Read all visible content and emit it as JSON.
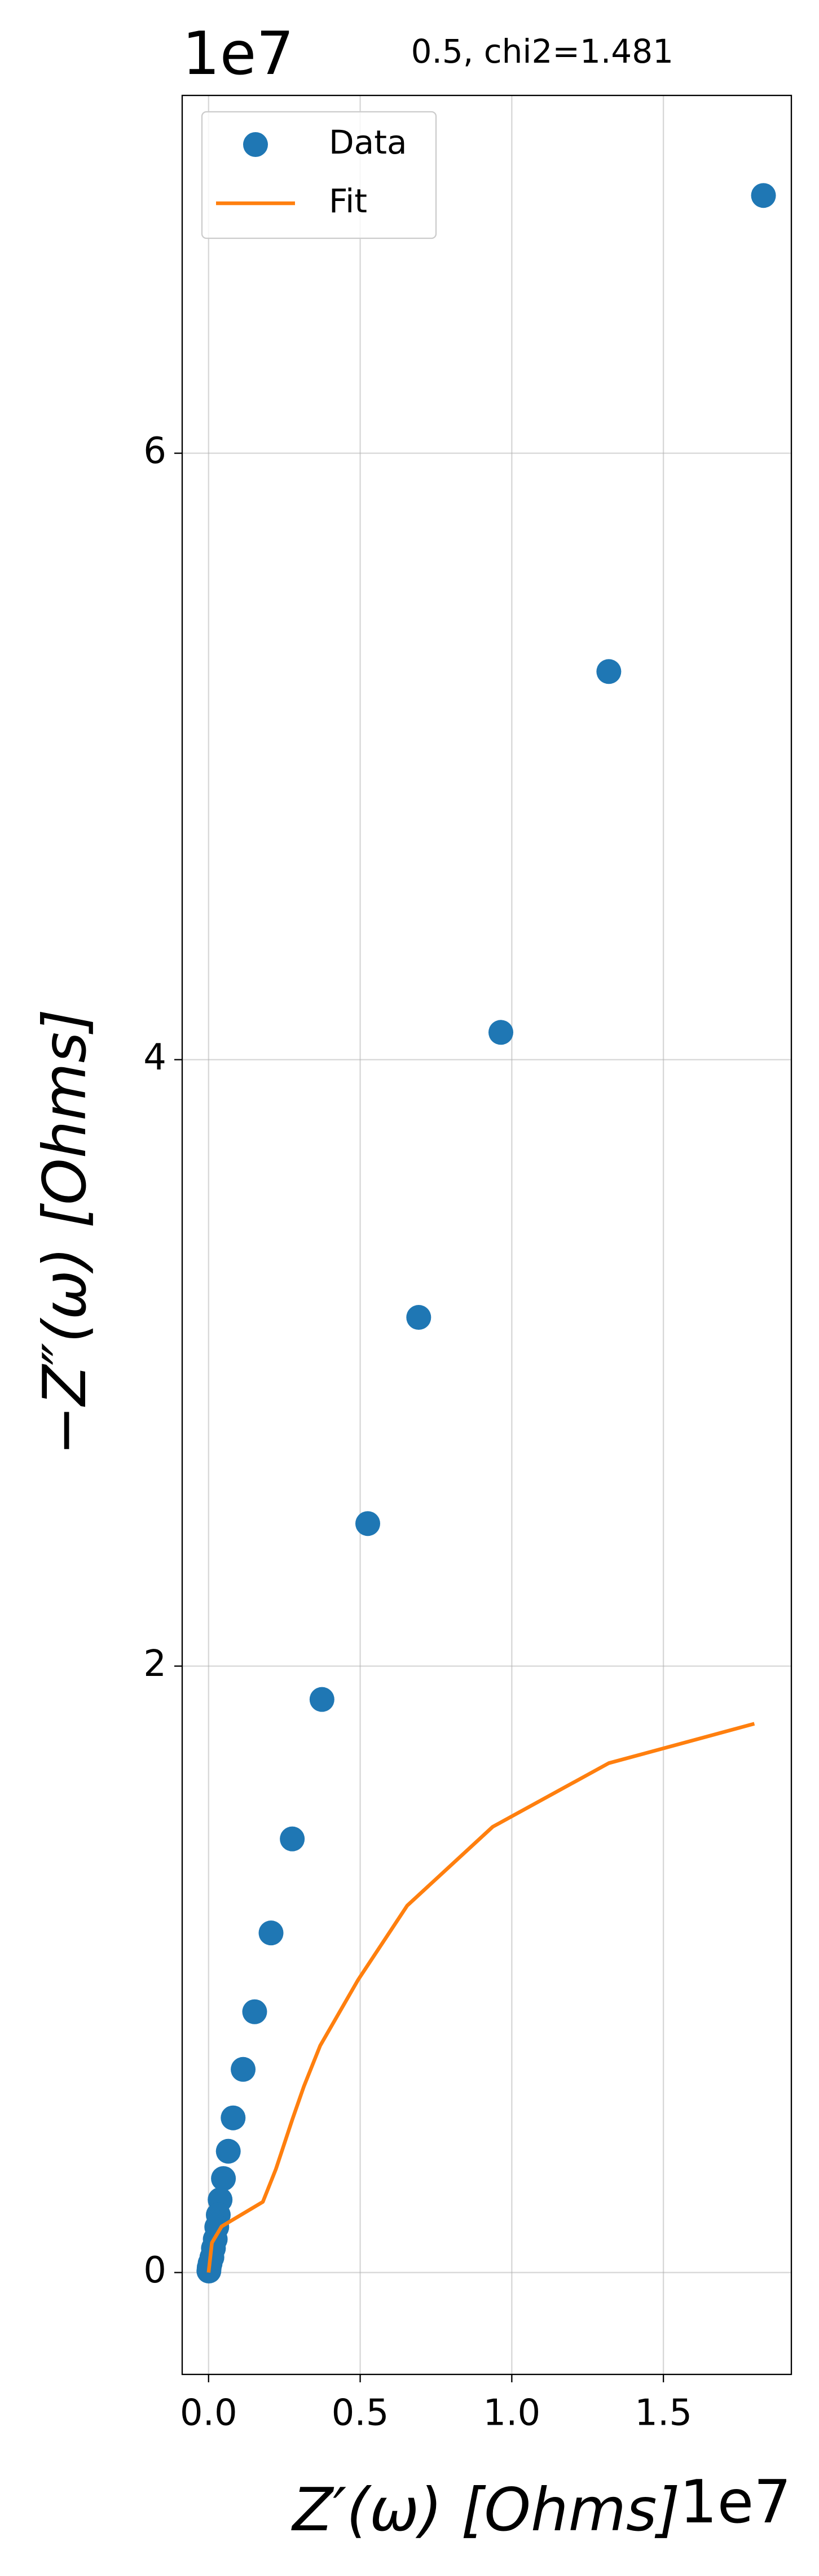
{
  "chart_data": {
    "type": "scatter",
    "title": "0.5, chi2=1.481",
    "xlabel": "Z′(ω) [Ohms]",
    "ylabel": "−Z″(ω) [Ohms]",
    "x_offset_label": "1e7",
    "y_offset_label": "1e7",
    "xlim": [
      -0.087,
      1.922
    ],
    "ylim": [
      -0.336,
      7.18
    ],
    "xticks": [
      {
        "value": 0,
        "label": "0.0"
      },
      0.5,
      {
        "value": 1,
        "label": "1.0"
      },
      1.5
    ],
    "yticks": [
      0,
      2,
      4,
      6
    ],
    "grid": true,
    "legend": "upper left",
    "series": [
      {
        "name": "Data",
        "kind": "scatter",
        "color": "#1f77b4",
        "x": [
          1.83,
          1.32,
          0.964,
          0.693,
          0.525,
          0.374,
          0.276,
          0.206,
          0.152,
          0.114,
          0.081,
          0.065,
          0.049,
          0.038,
          0.032,
          0.027,
          0.022,
          0.016,
          0.011,
          0.005,
          0.002,
          0.001
        ],
        "values": [
          6.85,
          5.28,
          4.09,
          3.15,
          2.47,
          1.89,
          1.43,
          1.12,
          0.86,
          0.67,
          0.51,
          0.4,
          0.31,
          0.24,
          0.19,
          0.15,
          0.11,
          0.08,
          0.05,
          0.03,
          0.016,
          0.005
        ]
      },
      {
        "name": "Fit",
        "kind": "line",
        "color": "#ff7f0e",
        "x": [
          0,
          0.011,
          0.043,
          0.179,
          0.222,
          0.276,
          0.314,
          0.368,
          0.493,
          0.655,
          0.937,
          1.32,
          1.8
        ],
        "values": [
          0,
          0.098,
          0.152,
          0.233,
          0.341,
          0.504,
          0.613,
          0.748,
          0.965,
          1.21,
          1.47,
          1.68,
          1.81
        ]
      }
    ]
  }
}
